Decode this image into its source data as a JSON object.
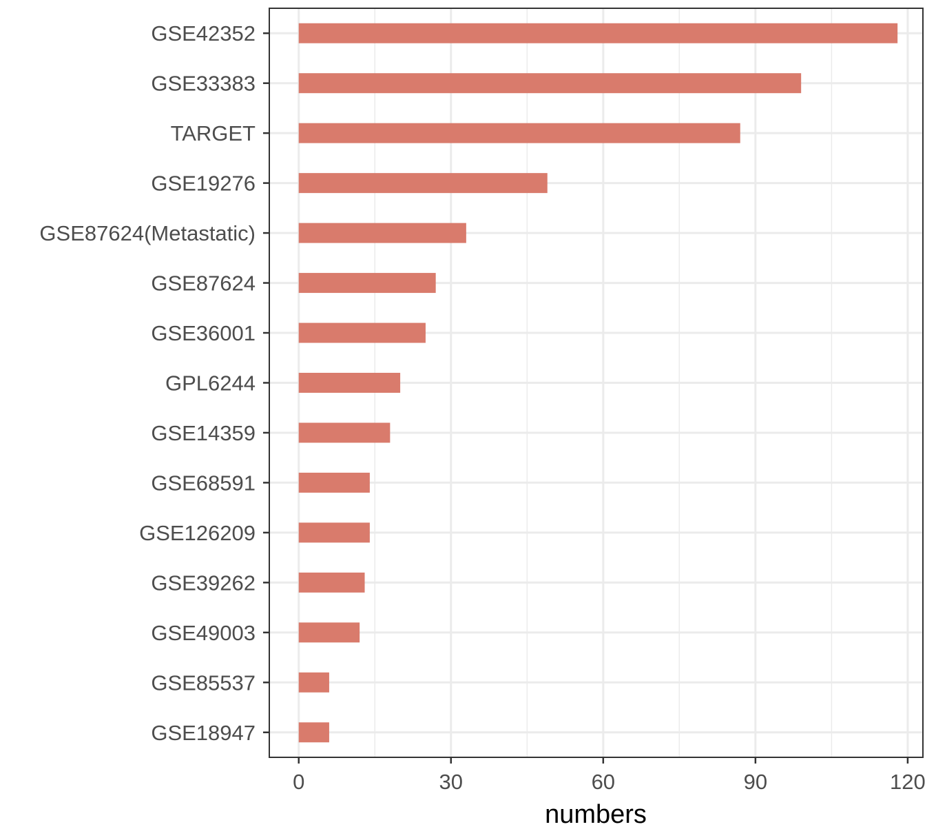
{
  "chart_data": {
    "type": "bar",
    "orientation": "horizontal",
    "categories": [
      "GSE42352",
      "GSE33383",
      "TARGET",
      "GSE19276",
      "GSE87624(Metastatic)",
      "GSE87624",
      "GSE36001",
      "GPL6244",
      "GSE14359",
      "GSE68591",
      "GSE126209",
      "GSE39262",
      "GSE49003",
      "GSE85537",
      "GSE18947"
    ],
    "values": [
      118,
      99,
      87,
      49,
      33,
      27,
      25,
      20,
      18,
      14,
      14,
      13,
      12,
      6,
      6
    ],
    "xlabel": "numbers",
    "ylabel": "",
    "xlim": [
      -5.8,
      123
    ],
    "xticks": [
      0,
      30,
      60,
      90,
      120
    ],
    "grid": true,
    "bar_color": "#d97b6c",
    "grid_color": "#ebebeb"
  }
}
